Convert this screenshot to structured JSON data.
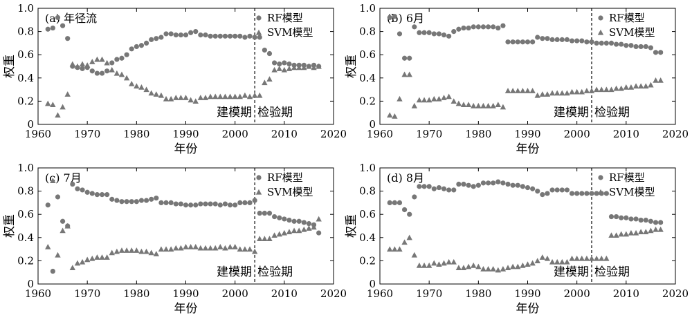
{
  "chart_data": [
    {
      "type": "scatter",
      "panel_label": "(a) 年径流",
      "xlabel": "年份",
      "ylabel": "权重",
      "xlim": [
        1960,
        2020
      ],
      "ylim": [
        0,
        1.0
      ],
      "xticks": [
        "1960",
        "1970",
        "1980",
        "1990",
        "2000",
        "2010",
        "2020"
      ],
      "yticks": [
        "0",
        "0.2",
        "0.4",
        "0.6",
        "0.8",
        "1.0"
      ],
      "grid": false,
      "legend_position": "top-right",
      "divider_x": 2004,
      "period_labels": {
        "calibration": "建模期",
        "validation": "检验期"
      },
      "x": [
        1962,
        1963,
        1964,
        1965,
        1966,
        1967,
        1968,
        1969,
        1970,
        1971,
        1972,
        1973,
        1974,
        1975,
        1976,
        1977,
        1978,
        1979,
        1980,
        1981,
        1982,
        1983,
        1984,
        1985,
        1986,
        1987,
        1988,
        1989,
        1990,
        1991,
        1992,
        1993,
        1994,
        1995,
        1996,
        1997,
        1998,
        1999,
        2000,
        2001,
        2002,
        2003,
        2004,
        2005,
        2006,
        2007,
        2008,
        2009,
        2010,
        2011,
        2012,
        2013,
        2014,
        2015,
        2016,
        2017
      ],
      "series": [
        {
          "name": "RF模型",
          "marker": "circle",
          "values": [
            0.82,
            0.83,
            0.92,
            0.85,
            0.74,
            0.5,
            0.49,
            0.48,
            0.49,
            0.46,
            0.44,
            0.44,
            0.46,
            0.53,
            0.56,
            0.57,
            0.6,
            0.65,
            0.67,
            0.68,
            0.7,
            0.73,
            0.74,
            0.75,
            0.78,
            0.78,
            0.77,
            0.77,
            0.77,
            0.79,
            0.8,
            0.77,
            0.77,
            0.76,
            0.76,
            0.76,
            0.76,
            0.76,
            0.76,
            0.76,
            0.75,
            0.76,
            0.75,
            0.75,
            0.64,
            0.61,
            0.53,
            0.52,
            0.53,
            0.52,
            0.51,
            0.51,
            0.51,
            0.5,
            0.51,
            0.5
          ]
        },
        {
          "name": "SVM模型",
          "marker": "triangle",
          "values": [
            0.18,
            0.17,
            0.08,
            0.15,
            0.26,
            0.52,
            0.5,
            0.52,
            0.51,
            0.54,
            0.56,
            0.56,
            0.53,
            0.47,
            0.44,
            0.43,
            0.4,
            0.35,
            0.33,
            0.32,
            0.3,
            0.27,
            0.26,
            0.25,
            0.22,
            0.22,
            0.23,
            0.23,
            0.23,
            0.21,
            0.2,
            0.23,
            0.23,
            0.24,
            0.24,
            0.24,
            0.24,
            0.24,
            0.24,
            0.24,
            0.25,
            0.24,
            0.25,
            0.25,
            0.36,
            0.39,
            0.47,
            0.48,
            0.47,
            0.48,
            0.49,
            0.49,
            0.49,
            0.5,
            0.49,
            0.5
          ]
        }
      ]
    },
    {
      "type": "scatter",
      "panel_label": "(b) 6月",
      "xlabel": "年份",
      "ylabel": "权重",
      "xlim": [
        1960,
        2020
      ],
      "ylim": [
        0,
        1.0
      ],
      "xticks": [
        "1960",
        "1970",
        "1980",
        "1990",
        "2000",
        "2010",
        "2020"
      ],
      "yticks": [
        "0",
        "0.2",
        "0.4",
        "0.6",
        "0.8",
        "1.0"
      ],
      "grid": false,
      "legend_position": "top-right",
      "divider_x": 2003,
      "period_labels": {
        "calibration": "建模期",
        "validation": "检验期"
      },
      "x": [
        1962,
        1963,
        1964,
        1965,
        1966,
        1967,
        1968,
        1969,
        1970,
        1971,
        1972,
        1973,
        1974,
        1975,
        1976,
        1977,
        1978,
        1979,
        1980,
        1981,
        1982,
        1983,
        1984,
        1985,
        1986,
        1987,
        1988,
        1989,
        1990,
        1991,
        1992,
        1993,
        1994,
        1995,
        1996,
        1997,
        1998,
        1999,
        2000,
        2001,
        2002,
        2003,
        2004,
        2005,
        2006,
        2007,
        2008,
        2009,
        2010,
        2011,
        2012,
        2013,
        2014,
        2015,
        2016,
        2017
      ],
      "series": [
        {
          "name": "RF模型",
          "marker": "circle",
          "values": [
            0.92,
            0.93,
            0.78,
            0.57,
            0.57,
            0.84,
            0.79,
            0.79,
            0.79,
            0.78,
            0.78,
            0.77,
            0.76,
            0.8,
            0.82,
            0.83,
            0.83,
            0.84,
            0.84,
            0.84,
            0.84,
            0.84,
            0.83,
            0.85,
            0.71,
            0.71,
            0.71,
            0.71,
            0.71,
            0.71,
            0.75,
            0.74,
            0.74,
            0.73,
            0.73,
            0.73,
            0.73,
            0.72,
            0.72,
            0.72,
            0.71,
            0.71,
            0.7,
            0.7,
            0.7,
            0.7,
            0.69,
            0.69,
            0.68,
            0.68,
            0.67,
            0.67,
            0.67,
            0.66,
            0.62,
            0.62
          ]
        },
        {
          "name": "SVM模型",
          "marker": "triangle",
          "values": [
            0.08,
            0.07,
            0.22,
            0.43,
            0.43,
            0.16,
            0.21,
            0.21,
            0.21,
            0.22,
            0.22,
            0.23,
            0.24,
            0.2,
            0.18,
            0.17,
            0.17,
            0.16,
            0.16,
            0.16,
            0.16,
            0.16,
            0.17,
            0.15,
            0.29,
            0.29,
            0.29,
            0.29,
            0.29,
            0.29,
            0.25,
            0.26,
            0.26,
            0.27,
            0.27,
            0.27,
            0.27,
            0.28,
            0.28,
            0.28,
            0.29,
            0.29,
            0.3,
            0.3,
            0.3,
            0.3,
            0.31,
            0.31,
            0.32,
            0.32,
            0.33,
            0.33,
            0.33,
            0.34,
            0.38,
            0.38
          ]
        }
      ]
    },
    {
      "type": "scatter",
      "panel_label": "(c) 7月",
      "xlabel": "年份",
      "ylabel": "权重",
      "xlim": [
        1960,
        2020
      ],
      "ylim": [
        0,
        1.0
      ],
      "xticks": [
        "1960",
        "1970",
        "1980",
        "1990",
        "2000",
        "2010",
        "2020"
      ],
      "yticks": [
        "0",
        "0.2",
        "0.4",
        "0.6",
        "0.8",
        "1.0"
      ],
      "grid": false,
      "legend_position": "top-right",
      "divider_x": 2004,
      "period_labels": {
        "calibration": "建模期",
        "validation": "检验期"
      },
      "x": [
        1962,
        1963,
        1964,
        1965,
        1966,
        1967,
        1968,
        1969,
        1970,
        1971,
        1972,
        1973,
        1974,
        1975,
        1976,
        1977,
        1978,
        1979,
        1980,
        1981,
        1982,
        1983,
        1984,
        1985,
        1986,
        1987,
        1988,
        1989,
        1990,
        1991,
        1992,
        1993,
        1994,
        1995,
        1996,
        1997,
        1998,
        1999,
        2000,
        2001,
        2002,
        2003,
        2004,
        2005,
        2006,
        2007,
        2008,
        2009,
        2010,
        2011,
        2012,
        2013,
        2014,
        2015,
        2016,
        2017
      ],
      "series": [
        {
          "name": "RF模型",
          "marker": "circle",
          "values": [
            0.68,
            0.11,
            0.75,
            0.54,
            0.5,
            0.86,
            0.82,
            0.81,
            0.79,
            0.78,
            0.77,
            0.77,
            0.77,
            0.73,
            0.72,
            0.71,
            0.71,
            0.71,
            0.71,
            0.72,
            0.72,
            0.73,
            0.74,
            0.7,
            0.7,
            0.7,
            0.69,
            0.69,
            0.68,
            0.68,
            0.68,
            0.69,
            0.69,
            0.69,
            0.69,
            0.68,
            0.69,
            0.68,
            0.68,
            0.7,
            0.7,
            0.7,
            0.72,
            0.61,
            0.61,
            0.61,
            0.58,
            0.57,
            0.56,
            0.55,
            0.54,
            0.54,
            0.53,
            0.52,
            0.51,
            0.44
          ]
        },
        {
          "name": "SVM模型",
          "marker": "triangle",
          "values": [
            0.32,
            0.89,
            0.25,
            0.46,
            0.5,
            0.14,
            0.18,
            0.19,
            0.21,
            0.22,
            0.23,
            0.23,
            0.23,
            0.27,
            0.28,
            0.29,
            0.29,
            0.29,
            0.29,
            0.28,
            0.28,
            0.27,
            0.26,
            0.3,
            0.3,
            0.3,
            0.31,
            0.31,
            0.32,
            0.32,
            0.32,
            0.31,
            0.31,
            0.31,
            0.31,
            0.32,
            0.31,
            0.32,
            0.32,
            0.3,
            0.3,
            0.3,
            0.28,
            0.39,
            0.39,
            0.39,
            0.42,
            0.43,
            0.44,
            0.45,
            0.46,
            0.46,
            0.47,
            0.48,
            0.49,
            0.56
          ]
        }
      ]
    },
    {
      "type": "scatter",
      "panel_label": "(d) 8月",
      "xlabel": "年份",
      "ylabel": "权重",
      "xlim": [
        1960,
        2020
      ],
      "ylim": [
        0,
        1.0
      ],
      "xticks": [
        "1960",
        "1970",
        "1980",
        "1990",
        "2000",
        "2010",
        "2020"
      ],
      "yticks": [
        "0",
        "0.2",
        "0.4",
        "0.6",
        "0.8",
        "1.0"
      ],
      "grid": false,
      "legend_position": "top-right",
      "divider_x": 2003,
      "period_labels": {
        "calibration": "建模期",
        "validation": "检验期"
      },
      "x": [
        1962,
        1963,
        1964,
        1965,
        1966,
        1967,
        1968,
        1969,
        1970,
        1971,
        1972,
        1973,
        1974,
        1975,
        1976,
        1977,
        1978,
        1979,
        1980,
        1981,
        1982,
        1983,
        1984,
        1985,
        1986,
        1987,
        1988,
        1989,
        1990,
        1991,
        1992,
        1993,
        1994,
        1995,
        1996,
        1997,
        1998,
        1999,
        2000,
        2001,
        2002,
        2003,
        2004,
        2005,
        2006,
        2007,
        2008,
        2009,
        2010,
        2011,
        2012,
        2013,
        2014,
        2015,
        2016,
        2017
      ],
      "series": [
        {
          "name": "RF模型",
          "marker": "circle",
          "values": [
            0.7,
            0.7,
            0.7,
            0.64,
            0.6,
            0.75,
            0.84,
            0.84,
            0.84,
            0.82,
            0.83,
            0.82,
            0.81,
            0.81,
            0.86,
            0.86,
            0.85,
            0.84,
            0.85,
            0.87,
            0.87,
            0.87,
            0.88,
            0.87,
            0.86,
            0.85,
            0.85,
            0.84,
            0.83,
            0.82,
            0.8,
            0.77,
            0.78,
            0.81,
            0.81,
            0.81,
            0.81,
            0.78,
            0.78,
            0.78,
            0.78,
            0.78,
            0.78,
            0.78,
            0.78,
            0.58,
            0.58,
            0.57,
            0.57,
            0.56,
            0.56,
            0.55,
            0.55,
            0.54,
            0.53,
            0.53
          ]
        },
        {
          "name": "SVM模型",
          "marker": "triangle",
          "values": [
            0.3,
            0.3,
            0.3,
            0.36,
            0.4,
            0.25,
            0.16,
            0.16,
            0.16,
            0.18,
            0.17,
            0.18,
            0.19,
            0.19,
            0.14,
            0.14,
            0.15,
            0.16,
            0.15,
            0.13,
            0.13,
            0.13,
            0.12,
            0.13,
            0.14,
            0.15,
            0.15,
            0.16,
            0.17,
            0.18,
            0.2,
            0.23,
            0.22,
            0.19,
            0.19,
            0.19,
            0.19,
            0.22,
            0.22,
            0.22,
            0.22,
            0.22,
            0.22,
            0.22,
            0.22,
            0.42,
            0.42,
            0.43,
            0.43,
            0.44,
            0.44,
            0.45,
            0.45,
            0.46,
            0.47,
            0.47
          ]
        }
      ]
    }
  ]
}
